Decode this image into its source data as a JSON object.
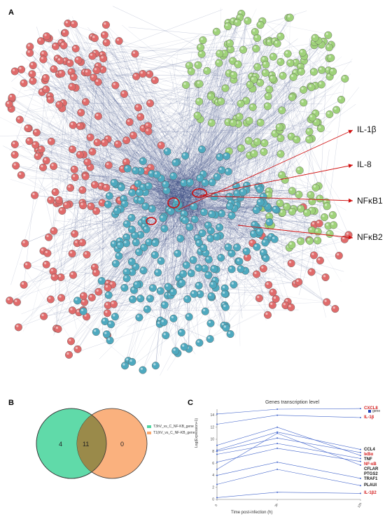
{
  "panels": {
    "a": "A",
    "b": "B",
    "c": "C"
  },
  "network": {
    "cluster_colors": {
      "red": "#e06b6b",
      "green": "#9fd27a",
      "blue": "#4ea9bf"
    },
    "highlight_color": "#d01010",
    "annotations": [
      "IL-1β",
      "IL-8",
      "NFκB1",
      "NFκB2"
    ]
  },
  "venn": {
    "sets": [
      {
        "name": "T3hV_vs_C_NF-KB_gene",
        "color": "#4fd6a0"
      },
      {
        "name": "T1(hV_vs_C_NF-KB_gene",
        "color": "#f9a870"
      }
    ],
    "counts": {
      "only_a": "4",
      "both": "11",
      "only_b": "0"
    }
  },
  "chart_data": {
    "type": "line",
    "title": "Genes transcription level",
    "xlabel": "Time post-infection (h)",
    "ylabel": "Log(Expression+1)",
    "x_ticks": [
      "0",
      "3h",
      "12h"
    ],
    "ylim": [
      0,
      15
    ],
    "y_ticks": [
      "0",
      "2",
      "4",
      "6",
      "8",
      "10",
      "12",
      "14"
    ],
    "legend": "gene",
    "legend_color": "#1f3fb8",
    "line_color": "#4466cc",
    "series": [
      {
        "name": "CXCL8",
        "values": [
          14.2,
          15.0,
          15.1
        ],
        "highlight": true
      },
      {
        "name": "IL-1β",
        "values": [
          12.5,
          14.0,
          13.6
        ],
        "highlight": true
      },
      {
        "name": "CCL4",
        "values": [
          8.2,
          11.2,
          8.3
        ],
        "highlight": false
      },
      {
        "name": "IκBα",
        "values": [
          8.0,
          10.2,
          7.8
        ],
        "highlight": true
      },
      {
        "name": "TNF",
        "values": [
          9.0,
          12.0,
          7.3
        ],
        "highlight": false
      },
      {
        "name": "NF-κB",
        "values": [
          7.5,
          9.3,
          6.8
        ],
        "highlight": true
      },
      {
        "name": "CFLAR",
        "values": [
          6.2,
          8.5,
          6.3
        ],
        "highlight": false
      },
      {
        "name": "PTGS2",
        "values": [
          5.0,
          11.0,
          5.7
        ],
        "highlight": false
      },
      {
        "name": "TRAF1",
        "values": [
          4.0,
          6.2,
          3.5
        ],
        "highlight": false
      },
      {
        "name": "PLAUI",
        "values": [
          2.5,
          5.0,
          2.3
        ],
        "highlight": false
      },
      {
        "name": "IL-1β2",
        "values": [
          0.3,
          1.2,
          1.0
        ],
        "highlight": true
      }
    ]
  }
}
